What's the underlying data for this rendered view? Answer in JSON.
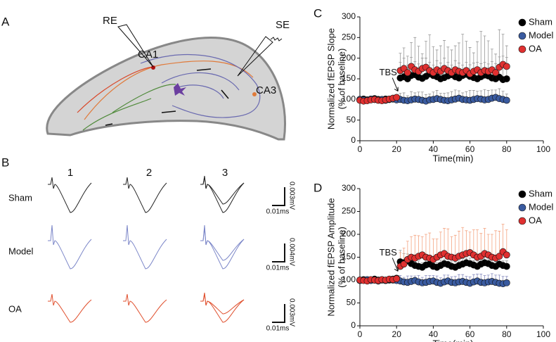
{
  "panel_labels": [
    "A",
    "B",
    "C",
    "D"
  ],
  "diagram": {
    "labels": [
      "RE",
      "SE",
      "CA1",
      "CA3"
    ]
  },
  "traces": {
    "columns": [
      "1",
      "2",
      "3"
    ],
    "rows": [
      "Sham",
      "Model",
      "OA"
    ],
    "scale_bars": [
      {
        "y": "0.003mV",
        "x": "0.01ms"
      },
      {
        "y": "0.004mV",
        "x": "0.01ms"
      },
      {
        "y": "0.003mV",
        "x": "0.01ms"
      }
    ]
  },
  "chart_data": [
    {
      "type": "scatter",
      "ylabel": [
        "Normalized fEPSP Slope",
        "(% of baseline)"
      ],
      "xlabel": "Time(min)",
      "annotation": "TBS",
      "xlim": [
        0,
        100
      ],
      "xticks": [
        0,
        20,
        40,
        60,
        80,
        100
      ],
      "ylim": [
        0,
        300
      ],
      "yticks": [
        0,
        50,
        100,
        150,
        200,
        250,
        300
      ],
      "legend": "top-right",
      "x": [
        0,
        2,
        4,
        6,
        8,
        10,
        12,
        14,
        16,
        18,
        20,
        22,
        24,
        26,
        28,
        30,
        32,
        34,
        36,
        38,
        40,
        42,
        44,
        46,
        48,
        50,
        52,
        54,
        56,
        58,
        60,
        62,
        64,
        66,
        68,
        70,
        72,
        74,
        76,
        78,
        80
      ],
      "series": [
        {
          "name": "Sham",
          "color": "#000000",
          "error_color": "#999999",
          "values": [
            100,
            101,
            99,
            100,
            102,
            100,
            99,
            101,
            100,
            102,
            103,
            152,
            155,
            150,
            158,
            160,
            154,
            151,
            156,
            162,
            158,
            155,
            150,
            153,
            157,
            160,
            155,
            152,
            158,
            161,
            156,
            153,
            150,
            155,
            159,
            157,
            152,
            150,
            154,
            148,
            150
          ],
          "errors": [
            5,
            5,
            5,
            5,
            5,
            5,
            5,
            5,
            5,
            5,
            5,
            60,
            70,
            55,
            80,
            90,
            75,
            60,
            85,
            95,
            70,
            65,
            80,
            90,
            70,
            60,
            75,
            85,
            100,
            80,
            70,
            60,
            90,
            110,
            95,
            85,
            70,
            60,
            115,
            110,
            80
          ]
        },
        {
          "name": "Model",
          "color": "#3a5ba0",
          "error_color": "#999999",
          "values": [
            100,
            99,
            98,
            101,
            100,
            99,
            100,
            98,
            100,
            101,
            99,
            100,
            98,
            97,
            99,
            101,
            100,
            98,
            96,
            99,
            100,
            102,
            100,
            98,
            97,
            99,
            101,
            103,
            100,
            99,
            98,
            100,
            102,
            101,
            99,
            100,
            103,
            105,
            102,
            100,
            98
          ],
          "errors": [
            5,
            5,
            5,
            5,
            5,
            5,
            5,
            5,
            5,
            5,
            5,
            15,
            18,
            12,
            20,
            15,
            18,
            20,
            16,
            14,
            18,
            20,
            15,
            17,
            19,
            20,
            22,
            18,
            16,
            20,
            24,
            22,
            18,
            20,
            25,
            22,
            20,
            18,
            24,
            20,
            15
          ]
        },
        {
          "name": "OA",
          "color": "#e03030",
          "error_color": "#999999",
          "values": [
            98,
            96,
            97,
            99,
            100,
            98,
            97,
            99,
            101,
            103,
            105,
            170,
            175,
            165,
            180,
            172,
            168,
            175,
            178,
            170,
            165,
            172,
            168,
            175,
            170,
            165,
            172,
            168,
            165,
            170,
            162,
            168,
            172,
            165,
            170,
            168,
            172,
            165,
            178,
            185,
            180
          ],
          "errors": [
            4,
            4,
            4,
            4,
            4,
            4,
            4,
            4,
            4,
            4,
            4,
            20,
            25,
            18,
            22,
            20,
            18,
            25,
            22,
            20,
            18,
            22,
            20,
            25,
            20,
            18,
            22,
            20,
            18,
            20,
            22,
            20,
            18,
            22,
            20,
            18,
            20,
            22,
            25,
            20,
            22
          ]
        }
      ]
    },
    {
      "type": "scatter",
      "ylabel": [
        "Normalized fEPSP Amplitude",
        "(% of baseline)"
      ],
      "xlabel": "Time(min)",
      "annotation": "TBS",
      "xlim": [
        0,
        100
      ],
      "xticks": [
        0,
        20,
        40,
        60,
        80,
        100
      ],
      "ylim": [
        0,
        300
      ],
      "yticks": [
        0,
        50,
        100,
        150,
        200,
        250,
        300
      ],
      "legend": "top-right",
      "x": [
        0,
        2,
        4,
        6,
        8,
        10,
        12,
        14,
        16,
        18,
        20,
        22,
        24,
        26,
        28,
        30,
        32,
        34,
        36,
        38,
        40,
        42,
        44,
        46,
        48,
        50,
        52,
        54,
        56,
        58,
        60,
        62,
        64,
        66,
        68,
        70,
        72,
        74,
        76,
        78,
        80
      ],
      "series": [
        {
          "name": "Sham",
          "color": "#000000",
          "error_color": "#999999",
          "values": [
            100,
            101,
            99,
            100,
            102,
            100,
            101,
            99,
            100,
            102,
            104,
            140,
            138,
            142,
            136,
            132,
            130,
            128,
            133,
            135,
            130,
            128,
            132,
            136,
            134,
            130,
            128,
            132,
            135,
            138,
            136,
            133,
            130,
            135,
            138,
            136,
            132,
            130,
            135,
            132,
            130
          ],
          "errors": [
            4,
            4,
            4,
            4,
            4,
            4,
            4,
            4,
            4,
            4,
            4,
            25,
            20,
            15,
            12,
            10,
            12,
            10,
            12,
            10,
            12,
            10,
            12,
            10,
            12,
            10,
            12,
            10,
            12,
            10,
            12,
            10,
            12,
            10,
            12,
            10,
            12,
            10,
            12,
            10,
            12
          ]
        },
        {
          "name": "Model",
          "color": "#3a5ba0",
          "error_color": "#8a8fc0",
          "values": [
            99,
            100,
            101,
            99,
            100,
            98,
            100,
            99,
            101,
            100,
            99,
            98,
            96,
            95,
            97,
            99,
            96,
            94,
            95,
            97,
            98,
            95,
            93,
            96,
            98,
            95,
            94,
            96,
            97,
            95,
            93,
            96,
            98,
            95,
            94,
            96,
            97,
            95,
            93,
            92,
            94
          ],
          "errors": [
            4,
            4,
            4,
            4,
            4,
            4,
            4,
            4,
            4,
            4,
            4,
            12,
            10,
            14,
            12,
            10,
            14,
            12,
            15,
            13,
            12,
            14,
            12,
            15,
            13,
            12,
            14,
            16,
            15,
            13,
            14,
            16,
            15,
            18,
            16,
            15,
            17,
            16,
            18,
            16,
            14
          ]
        },
        {
          "name": "OA",
          "color": "#e03030",
          "error_color": "#f4a582",
          "values": [
            100,
            99,
            98,
            101,
            100,
            99,
            101,
            100,
            102,
            101,
            103,
            130,
            135,
            145,
            150,
            148,
            152,
            155,
            150,
            148,
            145,
            150,
            155,
            158,
            152,
            150,
            148,
            152,
            155,
            158,
            160,
            155,
            150,
            152,
            158,
            155,
            150,
            148,
            152,
            162,
            155
          ],
          "errors": [
            4,
            4,
            4,
            4,
            4,
            4,
            4,
            4,
            4,
            4,
            4,
            30,
            35,
            40,
            45,
            50,
            45,
            40,
            50,
            55,
            45,
            40,
            50,
            55,
            60,
            45,
            50,
            55,
            60,
            50,
            45,
            55,
            60,
            50,
            55,
            45,
            50,
            60,
            55,
            60,
            55
          ]
        }
      ]
    }
  ]
}
